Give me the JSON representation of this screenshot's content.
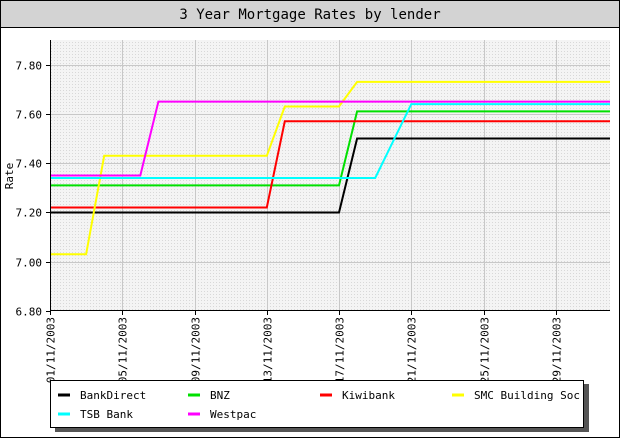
{
  "chart_data": {
    "type": "line",
    "title": "3 Year Mortgage Rates by lender",
    "ylabel": "Rate",
    "xlabel": "",
    "ylim": [
      6.8,
      7.9
    ],
    "xlim": [
      "2003-11-01",
      "2003-12-02"
    ],
    "yticks": [
      6.8,
      7.0,
      7.2,
      7.4,
      7.6,
      7.8
    ],
    "yticks_labels": [
      "6.80",
      "7.00",
      "7.20",
      "7.40",
      "7.60",
      "7.80"
    ],
    "xticks": [
      "2003-11-01",
      "2003-11-05",
      "2003-11-09",
      "2003-11-13",
      "2003-11-17",
      "2003-11-21",
      "2003-11-25",
      "2003-11-29"
    ],
    "xticks_labels": [
      "01/11/2003",
      "05/11/2003",
      "09/11/2003",
      "13/11/2003",
      "17/11/2003",
      "21/11/2003",
      "25/11/2003",
      "29/11/2003"
    ],
    "grid": true,
    "legend_placement": "bottom",
    "series": [
      {
        "name": "BankDirect",
        "color": "#000000",
        "points": [
          [
            "2003-11-01",
            7.2
          ],
          [
            "2003-11-17",
            7.2
          ],
          [
            "2003-11-18",
            7.5
          ],
          [
            "2003-12-02",
            7.5
          ]
        ]
      },
      {
        "name": "BNZ",
        "color": "#00e000",
        "points": [
          [
            "2003-11-01",
            7.31
          ],
          [
            "2003-11-17",
            7.31
          ],
          [
            "2003-11-18",
            7.61
          ],
          [
            "2003-12-02",
            7.61
          ]
        ]
      },
      {
        "name": "Kiwibank",
        "color": "#ff0000",
        "points": [
          [
            "2003-11-01",
            7.22
          ],
          [
            "2003-11-13",
            7.22
          ],
          [
            "2003-11-14",
            7.57
          ],
          [
            "2003-12-02",
            7.57
          ]
        ]
      },
      {
        "name": "SMC Building Soc",
        "color": "#ffff00",
        "points": [
          [
            "2003-11-01",
            7.03
          ],
          [
            "2003-11-03",
            7.03
          ],
          [
            "2003-11-04",
            7.43
          ],
          [
            "2003-11-13",
            7.43
          ],
          [
            "2003-11-14",
            7.63
          ],
          [
            "2003-11-17",
            7.63
          ],
          [
            "2003-11-18",
            7.73
          ],
          [
            "2003-12-02",
            7.73
          ]
        ]
      },
      {
        "name": "TSB Bank",
        "color": "#00ffff",
        "points": [
          [
            "2003-11-01",
            7.34
          ],
          [
            "2003-11-19",
            7.34
          ],
          [
            "2003-11-21",
            7.64
          ],
          [
            "2003-12-02",
            7.64
          ]
        ]
      },
      {
        "name": "Westpac",
        "color": "#ff00ff",
        "points": [
          [
            "2003-11-01",
            7.35
          ],
          [
            "2003-11-06",
            7.35
          ],
          [
            "2003-11-07",
            7.65
          ],
          [
            "2003-12-02",
            7.65
          ]
        ]
      }
    ]
  }
}
